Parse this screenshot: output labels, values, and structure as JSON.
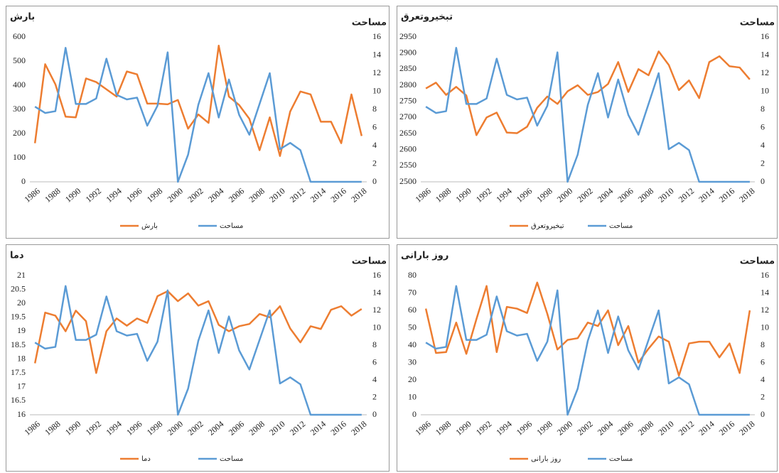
{
  "chart_data": [
    {
      "type": "line",
      "ylabel": "بارش",
      "y2label": "مساحت",
      "legend": "bottom",
      "categories": [
        1986,
        null,
        1988,
        null,
        1990,
        null,
        1992,
        null,
        1994,
        null,
        1996,
        null,
        1998,
        null,
        2000,
        null,
        2002,
        null,
        2004,
        null,
        2006,
        null,
        2008,
        null,
        2010,
        null,
        2012,
        null,
        2014,
        null,
        2016,
        null,
        2018
      ],
      "ylim": [
        0,
        600
      ],
      "yticks": [
        0,
        100,
        200,
        300,
        400,
        500,
        600
      ],
      "y2lim": [
        0,
        16
      ],
      "y2ticks": [
        0,
        2,
        4,
        6,
        8,
        10,
        12,
        14,
        16
      ],
      "series": [
        {
          "name": "بارش",
          "color": "#ed7d31",
          "values": [
            160,
            487,
            404,
            270,
            267,
            428,
            413,
            383,
            353,
            457,
            445,
            324,
            324,
            321,
            339,
            220,
            279,
            244,
            564,
            353,
            318,
            261,
            131,
            267,
            107,
            291,
            374,
            362,
            249,
            249,
            160,
            362,
            190
          ]
        },
        {
          "name": "مساحت",
          "color": "#5b9bd5",
          "axis": "y2",
          "values": [
            8.3,
            7.6,
            7.8,
            14.8,
            8.6,
            8.6,
            9.2,
            13.6,
            9.6,
            9.1,
            9.3,
            6.2,
            8.4,
            14.3,
            0,
            3,
            8.5,
            12,
            7.1,
            11.3,
            7.4,
            5.2,
            8.6,
            12,
            3.6,
            4.3,
            3.5,
            0,
            0,
            0,
            0,
            0,
            0
          ]
        }
      ]
    },
    {
      "type": "line",
      "ylabel": "تبخیروتعرق",
      "y2label": "مساحت",
      "legend": "bottom",
      "categories": [
        1986,
        null,
        1988,
        null,
        1990,
        null,
        1992,
        null,
        1994,
        null,
        1996,
        null,
        1998,
        null,
        2000,
        null,
        2002,
        null,
        2004,
        null,
        2006,
        null,
        2008,
        null,
        2010,
        null,
        2012,
        null,
        2014,
        null,
        2016,
        null,
        2018
      ],
      "ylim": [
        2500,
        2950
      ],
      "yticks": [
        2500,
        2550,
        2600,
        2650,
        2700,
        2750,
        2800,
        2850,
        2900,
        2950
      ],
      "y2lim": [
        0,
        16
      ],
      "y2ticks": [
        0,
        2,
        4,
        6,
        8,
        10,
        12,
        14,
        16
      ],
      "series": [
        {
          "name": "تبخیروتعرق",
          "color": "#ed7d31",
          "values": [
            2790,
            2808,
            2770,
            2795,
            2768,
            2645,
            2700,
            2715,
            2653,
            2651,
            2671,
            2730,
            2765,
            2742,
            2781,
            2800,
            2770,
            2779,
            2804,
            2872,
            2779,
            2850,
            2831,
            2905,
            2863,
            2785,
            2815,
            2760,
            2872,
            2890,
            2859,
            2855,
            2818
          ]
        },
        {
          "name": "مساحت",
          "color": "#5b9bd5",
          "axis": "y2",
          "values": [
            8.3,
            7.6,
            7.8,
            14.8,
            8.6,
            8.6,
            9.2,
            13.6,
            9.6,
            9.1,
            9.3,
            6.2,
            8.4,
            14.3,
            0,
            3,
            8.5,
            12,
            7.1,
            11.3,
            7.4,
            5.2,
            8.6,
            12,
            3.6,
            4.3,
            3.5,
            0,
            0,
            0,
            0,
            0,
            0
          ]
        }
      ]
    },
    {
      "type": "line",
      "ylabel": "دما",
      "y2label": "مساحت",
      "legend": "bottom",
      "categories": [
        1986,
        null,
        1988,
        null,
        1990,
        null,
        1992,
        null,
        1994,
        null,
        1996,
        null,
        1998,
        null,
        2000,
        null,
        2002,
        null,
        2004,
        null,
        2006,
        null,
        2008,
        null,
        2010,
        null,
        2012,
        null,
        2014,
        null,
        2016,
        null,
        2018
      ],
      "ylim": [
        16,
        21
      ],
      "yticks": [
        16,
        16.5,
        17,
        17.5,
        18,
        18.5,
        19,
        19.5,
        20,
        20.5,
        21
      ],
      "y2lim": [
        0,
        16
      ],
      "y2ticks": [
        0,
        2,
        4,
        6,
        8,
        10,
        12,
        14,
        16
      ],
      "series": [
        {
          "name": "دما",
          "color": "#ed7d31",
          "values": [
            17.85,
            19.67,
            19.56,
            19,
            19.74,
            19.36,
            17.5,
            19,
            19.46,
            19.2,
            19.46,
            19.3,
            20.26,
            20.44,
            20.08,
            20.36,
            19.92,
            20.08,
            19.23,
            19,
            19.18,
            19.26,
            19.62,
            19.5,
            19.9,
            19.1,
            18.6,
            19.18,
            19.08,
            19.77,
            19.9,
            19.56,
            19.8
          ]
        },
        {
          "name": "مساحت",
          "color": "#5b9bd5",
          "axis": "y2",
          "values": [
            8.3,
            7.6,
            7.8,
            14.8,
            8.6,
            8.6,
            9.2,
            13.6,
            9.6,
            9.1,
            9.3,
            6.2,
            8.4,
            14.3,
            0,
            3,
            8.5,
            12,
            7.1,
            11.3,
            7.4,
            5.2,
            8.6,
            12,
            3.6,
            4.3,
            3.5,
            0,
            0,
            0,
            0,
            0,
            0
          ]
        }
      ]
    },
    {
      "type": "line",
      "ylabel": "روز بارانی",
      "y2label": "مساحت",
      "legend": "bottom",
      "categories": [
        1986,
        null,
        1988,
        null,
        1990,
        null,
        1992,
        null,
        1994,
        null,
        1996,
        null,
        1998,
        null,
        2000,
        null,
        2002,
        null,
        2004,
        null,
        2006,
        null,
        2008,
        null,
        2010,
        null,
        2012,
        null,
        2014,
        null,
        2016,
        null,
        2018
      ],
      "ylim": [
        0,
        80
      ],
      "yticks": [
        0,
        10,
        20,
        30,
        40,
        50,
        60,
        70,
        80
      ],
      "y2lim": [
        0,
        16
      ],
      "y2ticks": [
        0,
        2,
        4,
        6,
        8,
        10,
        12,
        14,
        16
      ],
      "series": [
        {
          "name": "روز بارانی",
          "color": "#ed7d31",
          "values": [
            61,
            35.5,
            36,
            53,
            35,
            55,
            74,
            36,
            62,
            61,
            58.5,
            76,
            58,
            37.5,
            43,
            44,
            53,
            51,
            60,
            40,
            51,
            30,
            38,
            45,
            42,
            22.5,
            41,
            42,
            42,
            33,
            41,
            24,
            60
          ]
        },
        {
          "name": "مساحت",
          "color": "#5b9bd5",
          "axis": "y2",
          "values": [
            8.3,
            7.6,
            7.8,
            14.8,
            8.6,
            8.6,
            9.2,
            13.6,
            9.6,
            9.1,
            9.3,
            6.2,
            8.4,
            14.3,
            0,
            3,
            8.5,
            12,
            7.1,
            11.3,
            7.4,
            5.2,
            8.6,
            12,
            3.6,
            4.3,
            3.5,
            0,
            0,
            0,
            0,
            0,
            0
          ]
        }
      ]
    }
  ]
}
